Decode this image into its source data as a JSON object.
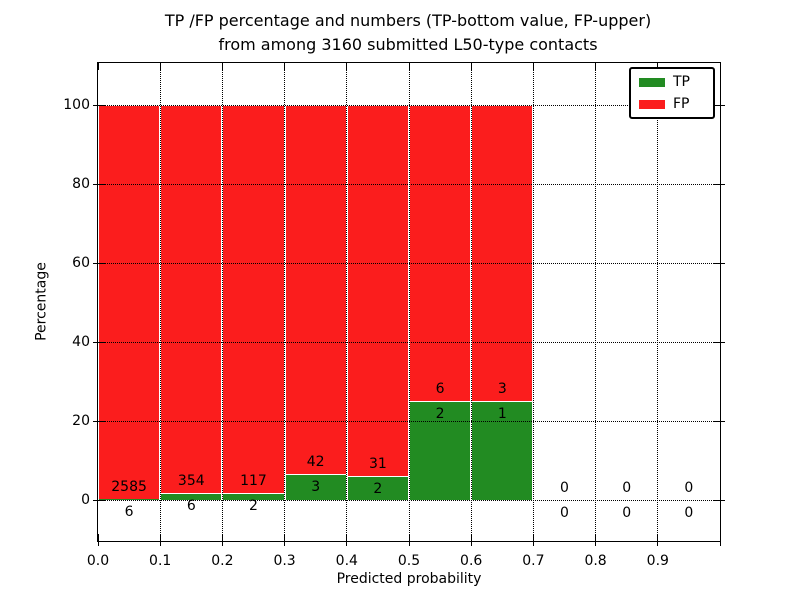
{
  "title": {
    "line1": "TP /FP percentage and numbers (TP-bottom value, FP-upper)",
    "line2": "from among 3160 submitted L50-type contacts"
  },
  "axes": {
    "xlabel": "Predicted probability",
    "ylabel": "Percentage",
    "x_tick_labels": [
      "0.0",
      "0.1",
      "0.2",
      "0.3",
      "0.4",
      "0.5",
      "0.6",
      "0.7",
      "0.8",
      "0.9"
    ],
    "y_tick_labels": [
      "0",
      "20",
      "40",
      "60",
      "80",
      "100"
    ],
    "y_tick_values": [
      0,
      20,
      40,
      60,
      80,
      100
    ]
  },
  "legend": {
    "entries": [
      {
        "label": "TP",
        "color": "#228b22"
      },
      {
        "label": "FP",
        "color": "#fb1d1d"
      }
    ]
  },
  "colors": {
    "tp_green": "#228b22",
    "fp_red": "#fb1d1d",
    "bar_edge": "#ffffff",
    "text": "#000000"
  },
  "chart_data": {
    "type": "bar",
    "stacked": true,
    "normalized_to_percent": true,
    "title": "TP /FP percentage and numbers (TP-bottom value, FP-upper) from among 3160 submitted L50-type contacts",
    "xlabel": "Predicted probability",
    "ylabel": "Percentage",
    "categories": [
      "0.0",
      "0.1",
      "0.2",
      "0.3",
      "0.4",
      "0.5",
      "0.6",
      "0.7",
      "0.8",
      "0.9"
    ],
    "bin_width": 0.1,
    "xlim": [
      0.0,
      1.0
    ],
    "ylim": [
      -10,
      110
    ],
    "grid": true,
    "legend_position": "upper right",
    "total_contacts": 3160,
    "series": [
      {
        "name": "TP",
        "color": "#228b22",
        "values": [
          6,
          6,
          2,
          3,
          2,
          2,
          1,
          0,
          0,
          0
        ]
      },
      {
        "name": "FP",
        "color": "#fb1d1d",
        "values": [
          2585,
          354,
          117,
          42,
          31,
          6,
          3,
          0,
          0,
          0
        ]
      }
    ]
  }
}
